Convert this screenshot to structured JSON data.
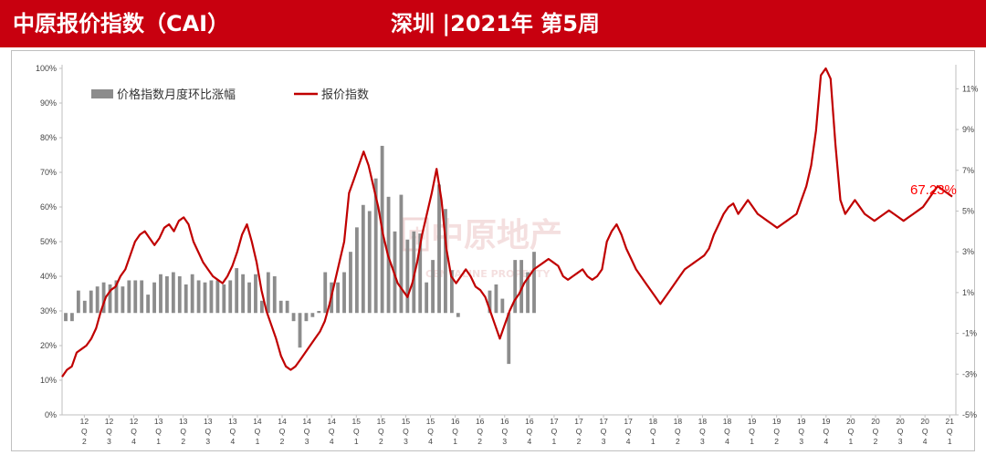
{
  "header": {
    "title_left": "中原报价指数（CAI）",
    "title_right": "深圳 |2021年 第5周",
    "bg_color": "#c8000f"
  },
  "watermark": {
    "main": "中原地产",
    "sub": "CENTALINE PROPERTY",
    "logo_mark": "中"
  },
  "chart_data": {
    "type": "bar+line",
    "legend_placement": "top-left",
    "legend": {
      "bar": "价格指数月度环比涨幅",
      "line": "报价指数"
    },
    "colors": {
      "bar": "#8c8c8c",
      "line": "#c00000",
      "annotation": "#ff0000"
    },
    "left_axis": {
      "ticks": [
        "0%",
        "10%",
        "20%",
        "30%",
        "40%",
        "50%",
        "60%",
        "70%",
        "80%",
        "90%",
        "100%"
      ],
      "range": [
        0,
        100
      ]
    },
    "right_axis": {
      "ticks": [
        "-5%",
        "-3%",
        "-1%",
        "1%",
        "3%",
        "5%",
        "7%",
        "9%",
        "11%"
      ],
      "range": [
        -5,
        12
      ]
    },
    "x_ticks": [
      [
        "12",
        "Q",
        "2"
      ],
      [
        "12",
        "Q",
        "3"
      ],
      [
        "12",
        "Q",
        "4"
      ],
      [
        "13",
        "Q",
        "1"
      ],
      [
        "13",
        "Q",
        "2"
      ],
      [
        "13",
        "Q",
        "3"
      ],
      [
        "13",
        "Q",
        "4"
      ],
      [
        "14",
        "Q",
        "1"
      ],
      [
        "14",
        "Q",
        "2"
      ],
      [
        "14",
        "Q",
        "3"
      ],
      [
        "14",
        "Q",
        "4"
      ],
      [
        "15",
        "Q",
        "1"
      ],
      [
        "15",
        "Q",
        "2"
      ],
      [
        "15",
        "Q",
        "3"
      ],
      [
        "15",
        "Q",
        "4"
      ],
      [
        "16",
        "Q",
        "1"
      ],
      [
        "16",
        "Q",
        "2"
      ],
      [
        "16",
        "Q",
        "3"
      ],
      [
        "16",
        "Q",
        "4"
      ],
      [
        "17",
        "Q",
        "1"
      ],
      [
        "17",
        "Q",
        "2"
      ],
      [
        "17",
        "Q",
        "3"
      ],
      [
        "17",
        "Q",
        "4"
      ],
      [
        "18",
        "Q",
        "1"
      ],
      [
        "18",
        "Q",
        "2"
      ],
      [
        "18",
        "Q",
        "3"
      ],
      [
        "18",
        "Q",
        "4"
      ],
      [
        "19",
        "Q",
        "1"
      ],
      [
        "19",
        "Q",
        "2"
      ],
      [
        "19",
        "Q",
        "3"
      ],
      [
        "19",
        "Q",
        "4"
      ],
      [
        "20",
        "Q",
        "1"
      ],
      [
        "20",
        "Q",
        "2"
      ],
      [
        "20",
        "Q",
        "3"
      ],
      [
        "20",
        "Q",
        "4"
      ],
      [
        "21",
        "Q",
        "1"
      ]
    ],
    "bar_values_pct": [
      -0.4,
      -0.4,
      1.1,
      0.6,
      1.1,
      1.3,
      1.5,
      1.4,
      1.6,
      1.3,
      1.6,
      1.6,
      1.6,
      0.9,
      1.5,
      1.9,
      1.8,
      2.0,
      1.8,
      1.4,
      1.9,
      1.6,
      1.5,
      1.6,
      1.6,
      1.4,
      1.6,
      2.2,
      1.9,
      1.5,
      1.9,
      0.6,
      2.0,
      1.8,
      0.6,
      0.6,
      -0.4,
      -1.7,
      -0.4,
      -0.2,
      0.1,
      2.0,
      1.5,
      1.5,
      2.0,
      3.0,
      4.2,
      5.3,
      5.0,
      6.6,
      8.2,
      5.7,
      4.0,
      5.8,
      3.6,
      4.0,
      3.9,
      1.5,
      2.6,
      6.3,
      5.1,
      2.1,
      -0.2,
      0,
      0,
      0,
      0,
      1.1,
      1.4,
      0.7,
      -2.5,
      2.6,
      2.6,
      2.0,
      3.0
    ],
    "line_series_pct": [
      11,
      13,
      14,
      18,
      19,
      20,
      22,
      25,
      30,
      34,
      36,
      37,
      40,
      42,
      46,
      50,
      52,
      53,
      51,
      49,
      51,
      54,
      55,
      53,
      56,
      57,
      55,
      50,
      47,
      44,
      42,
      40,
      39,
      38,
      40,
      43,
      47,
      52,
      55,
      50,
      44,
      36,
      30,
      26,
      22,
      17,
      14,
      13,
      14,
      16,
      18,
      20,
      22,
      24,
      27,
      32,
      38,
      44,
      50,
      64,
      68,
      72,
      76,
      72,
      66,
      60,
      52,
      46,
      42,
      38,
      36,
      34,
      38,
      44,
      52,
      58,
      64,
      71,
      62,
      48,
      40,
      38,
      40,
      42,
      40,
      37,
      36,
      34,
      30,
      26,
      22,
      26,
      30,
      33,
      35,
      38,
      40,
      42,
      43,
      44,
      45,
      44,
      43,
      40,
      39,
      40,
      41,
      42,
      40,
      39,
      40,
      42,
      50,
      53,
      55,
      52,
      48,
      45,
      42,
      40,
      38,
      36,
      34,
      32,
      34,
      36,
      38,
      40,
      42,
      43,
      44,
      45,
      46,
      48,
      52,
      55,
      58,
      60,
      61,
      58,
      60,
      62,
      60,
      58,
      57,
      56,
      55,
      54,
      55,
      56,
      57,
      58,
      62,
      66,
      72,
      82,
      98,
      100,
      97,
      78,
      62,
      58,
      60,
      62,
      60,
      58,
      57,
      56,
      57,
      58,
      59,
      58,
      57,
      56,
      57,
      58,
      59,
      60,
      62,
      64,
      66,
      65,
      64,
      63
    ],
    "line_x_domain": [
      0,
      187
    ],
    "annotation": {
      "text": "67.23%"
    }
  }
}
